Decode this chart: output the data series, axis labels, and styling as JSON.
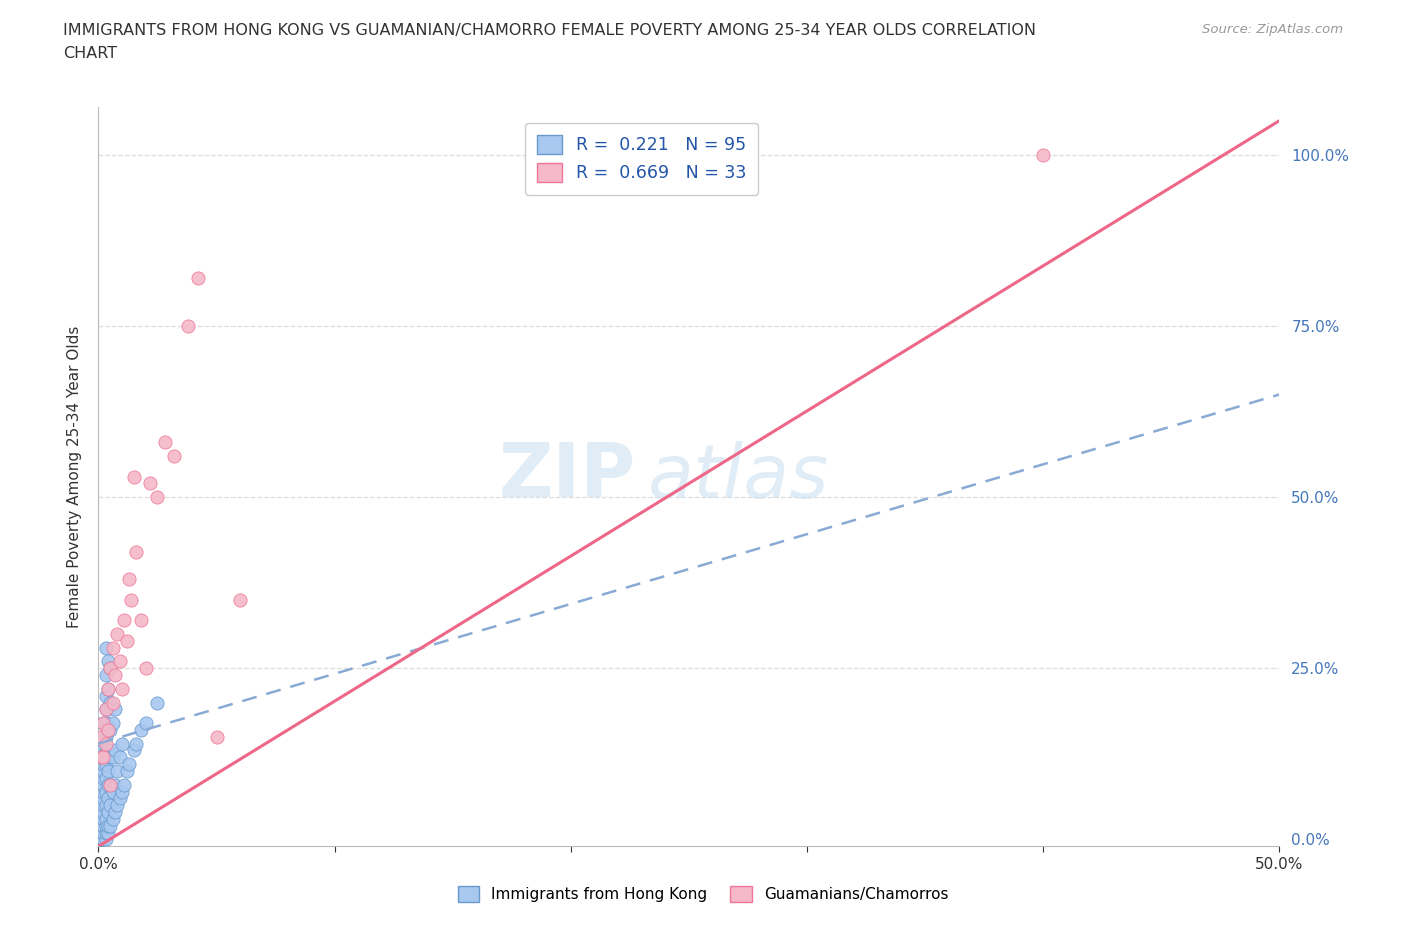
{
  "title_line1": "IMMIGRANTS FROM HONG KONG VS GUAMANIAN/CHAMORRO FEMALE POVERTY AMONG 25-34 YEAR OLDS CORRELATION",
  "title_line2": "CHART",
  "source": "Source: ZipAtlas.com",
  "ylabel": "Female Poverty Among 25-34 Year Olds",
  "xlim": [
    0.0,
    0.5
  ],
  "ylim": [
    -0.01,
    1.07
  ],
  "yticks": [
    0.0,
    0.25,
    0.5,
    0.75,
    1.0
  ],
  "xticks": [
    0.0,
    0.1,
    0.2,
    0.3,
    0.4,
    0.5
  ],
  "hk_R": 0.221,
  "hk_N": 95,
  "gua_R": 0.669,
  "gua_N": 33,
  "hk_color": "#a8c8f0",
  "gua_color": "#f4b8c8",
  "hk_edge_color": "#6699cc",
  "gua_edge_color": "#ee7799",
  "hk_line_color": "#88aad4",
  "gua_line_color": "#ee6688",
  "hk_line_x0": 0.0,
  "hk_line_y0": 0.14,
  "hk_line_x1": 0.5,
  "hk_line_y1": 0.65,
  "gua_line_x0": 0.0,
  "gua_line_y0": -0.01,
  "gua_line_x1": 0.5,
  "gua_line_y1": 1.05,
  "watermark_zip": "ZIP",
  "watermark_atlas": "atlas",
  "legend_label_hk": "Immigrants from Hong Kong",
  "legend_label_gua": "Guamanians/Chamorros",
  "hk_scatter_x": [
    0.001,
    0.001,
    0.001,
    0.001,
    0.001,
    0.001,
    0.001,
    0.001,
    0.001,
    0.001,
    0.001,
    0.001,
    0.001,
    0.001,
    0.001,
    0.001,
    0.001,
    0.001,
    0.001,
    0.001,
    0.002,
    0.002,
    0.002,
    0.002,
    0.002,
    0.002,
    0.002,
    0.002,
    0.002,
    0.002,
    0.002,
    0.002,
    0.002,
    0.002,
    0.002,
    0.002,
    0.002,
    0.002,
    0.002,
    0.002,
    0.003,
    0.003,
    0.003,
    0.003,
    0.003,
    0.003,
    0.003,
    0.003,
    0.003,
    0.003,
    0.003,
    0.003,
    0.003,
    0.003,
    0.003,
    0.004,
    0.004,
    0.004,
    0.004,
    0.004,
    0.004,
    0.004,
    0.004,
    0.004,
    0.004,
    0.004,
    0.005,
    0.005,
    0.005,
    0.005,
    0.005,
    0.005,
    0.005,
    0.006,
    0.006,
    0.006,
    0.006,
    0.007,
    0.007,
    0.007,
    0.007,
    0.008,
    0.008,
    0.009,
    0.009,
    0.01,
    0.01,
    0.011,
    0.012,
    0.013,
    0.015,
    0.016,
    0.018,
    0.02,
    0.025
  ],
  "hk_scatter_y": [
    0.0,
    0.0,
    0.0,
    0.0,
    0.01,
    0.01,
    0.01,
    0.02,
    0.02,
    0.03,
    0.03,
    0.03,
    0.04,
    0.04,
    0.05,
    0.05,
    0.06,
    0.06,
    0.07,
    0.08,
    0.0,
    0.0,
    0.01,
    0.01,
    0.02,
    0.02,
    0.03,
    0.03,
    0.04,
    0.05,
    0.06,
    0.07,
    0.08,
    0.09,
    0.1,
    0.11,
    0.12,
    0.13,
    0.15,
    0.17,
    0.0,
    0.01,
    0.02,
    0.03,
    0.05,
    0.07,
    0.09,
    0.11,
    0.13,
    0.15,
    0.17,
    0.19,
    0.21,
    0.24,
    0.28,
    0.01,
    0.02,
    0.04,
    0.06,
    0.08,
    0.1,
    0.13,
    0.16,
    0.19,
    0.22,
    0.26,
    0.02,
    0.05,
    0.08,
    0.12,
    0.16,
    0.2,
    0.25,
    0.03,
    0.07,
    0.12,
    0.17,
    0.04,
    0.08,
    0.13,
    0.19,
    0.05,
    0.1,
    0.06,
    0.12,
    0.07,
    0.14,
    0.08,
    0.1,
    0.11,
    0.13,
    0.14,
    0.16,
    0.17,
    0.2
  ],
  "gua_scatter_x": [
    0.001,
    0.001,
    0.002,
    0.002,
    0.003,
    0.003,
    0.004,
    0.004,
    0.005,
    0.005,
    0.006,
    0.006,
    0.007,
    0.008,
    0.009,
    0.01,
    0.011,
    0.012,
    0.013,
    0.014,
    0.015,
    0.016,
    0.018,
    0.02,
    0.022,
    0.025,
    0.028,
    0.032,
    0.038,
    0.042,
    0.05,
    0.06,
    0.4
  ],
  "gua_scatter_y": [
    0.12,
    0.15,
    0.12,
    0.17,
    0.14,
    0.19,
    0.16,
    0.22,
    0.08,
    0.25,
    0.2,
    0.28,
    0.24,
    0.3,
    0.26,
    0.22,
    0.32,
    0.29,
    0.38,
    0.35,
    0.53,
    0.42,
    0.32,
    0.25,
    0.52,
    0.5,
    0.58,
    0.56,
    0.75,
    0.82,
    0.15,
    0.35,
    1.0
  ],
  "background_color": "#ffffff",
  "grid_color": "#dddddd"
}
